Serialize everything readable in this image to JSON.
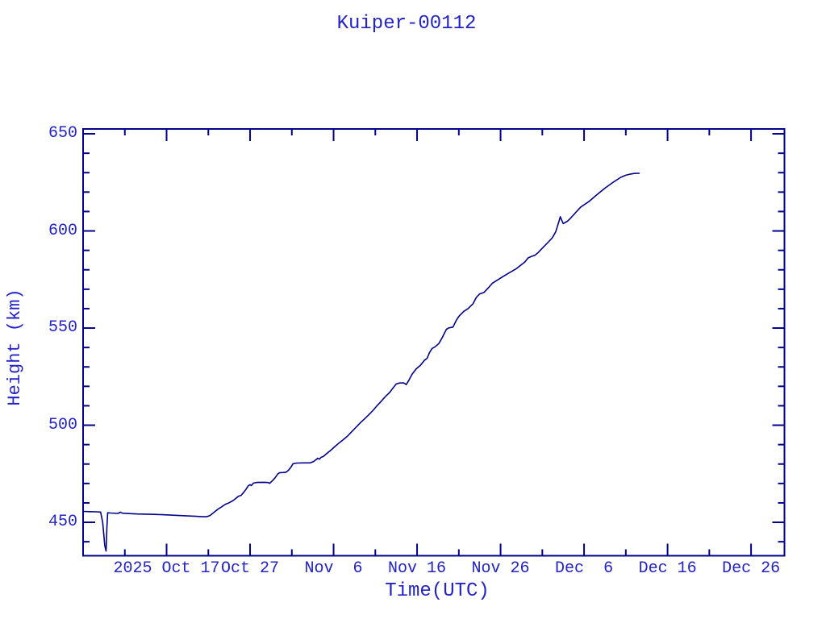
{
  "title": "Kuiper-00112",
  "colors": {
    "background": "#ffffff",
    "text": "#2323c8",
    "axis": "#00008b",
    "curve": "#00008b"
  },
  "chart_data": {
    "type": "line",
    "title": "Kuiper-00112",
    "xlabel": "Time(UTC)",
    "ylabel": "Height (km)",
    "grid": false,
    "legend": "none",
    "x_axis": {
      "epoch": "2025-10-07 00:00 UTC",
      "units": "days since epoch",
      "range_days": [
        0,
        84
      ],
      "major_tick_step_days": 10,
      "minor_tick_step_days": 5,
      "tick_labels": [
        {
          "t": 10,
          "label": "2025 Oct 17"
        },
        {
          "t": 20,
          "label": "Oct 27"
        },
        {
          "t": 30,
          "label": "Nov  6"
        },
        {
          "t": 40,
          "label": "Nov 16"
        },
        {
          "t": 50,
          "label": "Nov 26"
        },
        {
          "t": 60,
          "label": "Dec  6"
        },
        {
          "t": 70,
          "label": "Dec 16"
        },
        {
          "t": 80,
          "label": "Dec 26"
        }
      ]
    },
    "y_axis": {
      "units": "km",
      "range_km": [
        432.8,
        652.5
      ],
      "major_ticks": [
        450,
        500,
        550,
        600,
        650
      ],
      "minor_tick_step": 10
    },
    "series": [
      {
        "name": "Kuiper-00112 height",
        "points_format": "[days_since_epoch, height_km]",
        "points": [
          [
            0,
            455.6
          ],
          [
            0.8,
            455.5
          ],
          [
            1.6,
            455.4
          ],
          [
            2.1,
            455.3
          ],
          [
            2.35,
            450.0
          ],
          [
            2.6,
            438.0
          ],
          [
            2.75,
            435.2
          ],
          [
            2.85,
            447.0
          ],
          [
            2.95,
            454.9
          ],
          [
            3.3,
            454.8
          ],
          [
            4.2,
            454.6
          ],
          [
            4.45,
            455.2
          ],
          [
            4.7,
            454.7
          ],
          [
            5.5,
            454.5
          ],
          [
            6.5,
            454.3
          ],
          [
            7.5,
            454.2
          ],
          [
            8.5,
            454.1
          ],
          [
            9.5,
            453.9
          ],
          [
            10.5,
            453.7
          ],
          [
            11.5,
            453.5
          ],
          [
            12.5,
            453.3
          ],
          [
            13.5,
            453.1
          ],
          [
            14.3,
            452.9
          ],
          [
            14.8,
            452.9
          ],
          [
            15.2,
            453.5
          ],
          [
            15.7,
            455.2
          ],
          [
            16.1,
            456.6
          ],
          [
            16.5,
            457.7
          ],
          [
            16.8,
            458.6
          ],
          [
            17.1,
            459.4
          ],
          [
            17.4,
            459.9
          ],
          [
            17.9,
            461.0
          ],
          [
            18.3,
            462.3
          ],
          [
            18.6,
            463.4
          ],
          [
            18.9,
            463.8
          ],
          [
            19.2,
            465.2
          ],
          [
            19.5,
            466.9
          ],
          [
            19.8,
            468.9
          ],
          [
            20.0,
            469.4
          ],
          [
            20.15,
            468.9
          ],
          [
            20.4,
            470.2
          ],
          [
            20.8,
            470.5
          ],
          [
            21.6,
            470.6
          ],
          [
            22.1,
            470.5
          ],
          [
            22.35,
            470.1
          ],
          [
            22.7,
            471.5
          ],
          [
            23.0,
            473.0
          ],
          [
            23.3,
            474.8
          ],
          [
            23.5,
            475.5
          ],
          [
            23.9,
            475.6
          ],
          [
            24.3,
            475.8
          ],
          [
            24.6,
            476.8
          ],
          [
            24.9,
            478.4
          ],
          [
            25.15,
            480.2
          ],
          [
            25.6,
            480.5
          ],
          [
            26.5,
            480.6
          ],
          [
            27.2,
            480.6
          ],
          [
            27.6,
            481.3
          ],
          [
            27.9,
            482.2
          ],
          [
            28.1,
            483.0
          ],
          [
            28.3,
            482.5
          ],
          [
            28.5,
            483.4
          ],
          [
            28.8,
            484.0
          ],
          [
            29.2,
            485.5
          ],
          [
            29.7,
            487.2
          ],
          [
            30.2,
            489.2
          ],
          [
            30.7,
            491.0
          ],
          [
            31.2,
            492.7
          ],
          [
            31.7,
            494.5
          ],
          [
            32.2,
            496.8
          ],
          [
            32.7,
            499.0
          ],
          [
            33.2,
            501.2
          ],
          [
            33.7,
            503.2
          ],
          [
            34.2,
            505.3
          ],
          [
            34.7,
            507.5
          ],
          [
            35.2,
            510.0
          ],
          [
            35.7,
            512.3
          ],
          [
            36.2,
            514.7
          ],
          [
            36.7,
            516.8
          ],
          [
            37.1,
            519.0
          ],
          [
            37.5,
            521.2
          ],
          [
            37.9,
            521.7
          ],
          [
            38.4,
            521.8
          ],
          [
            38.7,
            520.9
          ],
          [
            39.0,
            523.0
          ],
          [
            39.4,
            526.2
          ],
          [
            39.9,
            529.0
          ],
          [
            40.4,
            530.8
          ],
          [
            40.9,
            533.5
          ],
          [
            41.2,
            534.4
          ],
          [
            41.5,
            537.5
          ],
          [
            41.8,
            539.5
          ],
          [
            42.1,
            540.2
          ],
          [
            42.6,
            542.0
          ],
          [
            43.0,
            545.0
          ],
          [
            43.5,
            549.3
          ],
          [
            43.8,
            550.1
          ],
          [
            44.3,
            550.5
          ],
          [
            44.7,
            554.0
          ],
          [
            45.0,
            556.0
          ],
          [
            45.6,
            558.6
          ],
          [
            46.1,
            560.0
          ],
          [
            46.7,
            562.5
          ],
          [
            47.1,
            565.8
          ],
          [
            47.5,
            567.6
          ],
          [
            48.0,
            568.3
          ],
          [
            48.5,
            570.5
          ],
          [
            49.0,
            573.0
          ],
          [
            50.0,
            575.8
          ],
          [
            50.9,
            578.1
          ],
          [
            51.9,
            580.6
          ],
          [
            52.9,
            584.0
          ],
          [
            53.3,
            586.1
          ],
          [
            53.7,
            586.9
          ],
          [
            54.1,
            587.5
          ],
          [
            54.5,
            588.8
          ],
          [
            54.8,
            590.2
          ],
          [
            55.2,
            592.0
          ],
          [
            55.7,
            594.2
          ],
          [
            56.2,
            596.5
          ],
          [
            56.6,
            599.5
          ],
          [
            57.0,
            605.0
          ],
          [
            57.15,
            607.3
          ],
          [
            57.5,
            603.8
          ],
          [
            58.0,
            605.0
          ],
          [
            58.3,
            606.2
          ],
          [
            59.0,
            609.5
          ],
          [
            59.6,
            612.3
          ],
          [
            60.6,
            615.2
          ],
          [
            61.5,
            618.5
          ],
          [
            62.5,
            622.0
          ],
          [
            63.5,
            625.1
          ],
          [
            64.4,
            627.6
          ],
          [
            65.0,
            628.7
          ],
          [
            65.6,
            629.3
          ],
          [
            66.0,
            629.6
          ],
          [
            66.6,
            629.7
          ]
        ]
      }
    ]
  }
}
